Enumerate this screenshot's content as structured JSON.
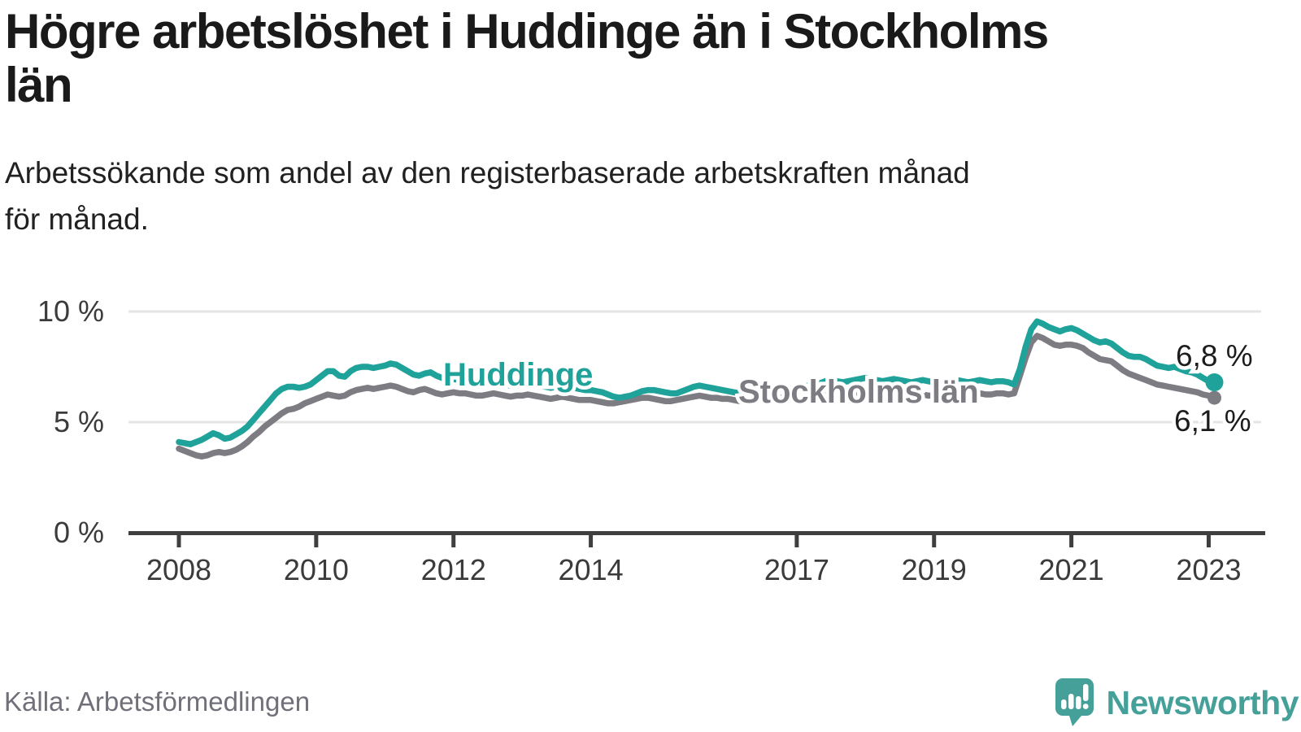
{
  "header": {
    "title_line1": "Högre arbetslöshet i Huddinge än i Stockholms",
    "title_line2": "län",
    "subtitle_line1": "Arbetssökande som andel av den registerbaserade arbetskraften månad",
    "subtitle_line2": "för månad."
  },
  "footer": {
    "source": "Källa: Arbetsförmedlingen",
    "brand_name": "Newsworthy"
  },
  "colors": {
    "huddinge": "#1ea29a",
    "stockholm": "#7c7c82",
    "annotation": "#1c1c1c",
    "axis": "#3f3f3f",
    "tick_text": "#3b3b3b",
    "grid": "#e4e4e4",
    "logo": "#46a09a"
  },
  "chart_data": {
    "type": "line",
    "title": "Högre arbetslöshet i Huddinge än i Stockholms län",
    "subtitle": "Arbetssökande som andel av den registerbaserade arbetskraften månad för månad.",
    "unit": "%",
    "x_monthly_start": "2008-01",
    "x_monthly_end": "2023-02",
    "ylim": [
      0,
      10.3
    ],
    "grid": "horizontal",
    "legend": "inline-labels",
    "x_ticks": [
      {
        "year": 2008,
        "label": "2008"
      },
      {
        "year": 2010,
        "label": "2010"
      },
      {
        "year": 2012,
        "label": "2012"
      },
      {
        "year": 2014,
        "label": "2014"
      },
      {
        "year": 2017,
        "label": "2017"
      },
      {
        "year": 2019,
        "label": "2019"
      },
      {
        "year": 2021,
        "label": "2021"
      },
      {
        "year": 2023,
        "label": "2023"
      }
    ],
    "y_ticks": [
      {
        "value": 0,
        "label": "0 %"
      },
      {
        "value": 5,
        "label": "5 %"
      },
      {
        "value": 10,
        "label": "10 %"
      }
    ],
    "series": [
      {
        "name": "Stockholms län",
        "end_label": "6,1 %",
        "end_value": 6.1,
        "values": [
          3.8,
          3.7,
          3.6,
          3.5,
          3.45,
          3.5,
          3.6,
          3.65,
          3.6,
          3.65,
          3.75,
          3.9,
          4.1,
          4.35,
          4.55,
          4.8,
          5.0,
          5.2,
          5.4,
          5.55,
          5.6,
          5.7,
          5.85,
          5.95,
          6.05,
          6.15,
          6.25,
          6.2,
          6.15,
          6.2,
          6.35,
          6.45,
          6.5,
          6.55,
          6.5,
          6.55,
          6.6,
          6.65,
          6.6,
          6.5,
          6.4,
          6.35,
          6.45,
          6.5,
          6.4,
          6.3,
          6.25,
          6.3,
          6.35,
          6.3,
          6.3,
          6.25,
          6.2,
          6.2,
          6.25,
          6.3,
          6.25,
          6.2,
          6.15,
          6.2,
          6.2,
          6.25,
          6.2,
          6.15,
          6.1,
          6.05,
          6.1,
          6.15,
          6.1,
          6.05,
          6.0,
          6.0,
          6.0,
          5.95,
          5.9,
          5.85,
          5.85,
          5.9,
          5.95,
          6.0,
          6.05,
          6.1,
          6.1,
          6.05,
          6.0,
          5.95,
          5.95,
          6.0,
          6.05,
          6.1,
          6.15,
          6.2,
          6.15,
          6.1,
          6.1,
          6.05,
          6.05,
          6.0,
          5.95,
          6.0,
          6.05,
          6.1,
          6.05,
          6.0,
          6.05,
          6.1,
          6.15,
          6.2,
          6.2,
          6.25,
          6.3,
          6.25,
          6.3,
          6.35,
          6.4,
          6.35,
          6.3,
          6.3,
          6.35,
          6.3,
          6.3,
          6.25,
          6.2,
          6.2,
          6.25,
          6.3,
          6.35,
          6.3,
          6.25,
          6.2,
          6.25,
          6.2,
          6.2,
          6.15,
          6.2,
          6.25,
          6.3,
          6.25,
          6.2,
          6.25,
          6.3,
          6.25,
          6.25,
          6.3,
          6.3,
          6.25,
          6.3,
          7.1,
          7.9,
          8.6,
          8.9,
          8.8,
          8.65,
          8.5,
          8.45,
          8.5,
          8.5,
          8.45,
          8.35,
          8.15,
          8.0,
          7.85,
          7.8,
          7.75,
          7.55,
          7.35,
          7.2,
          7.1,
          7.0,
          6.9,
          6.8,
          6.7,
          6.65,
          6.6,
          6.55,
          6.5,
          6.45,
          6.4,
          6.35,
          6.25,
          6.2,
          6.1
        ]
      },
      {
        "name": "Huddinge",
        "end_label": "6,8 %",
        "end_value": 6.8,
        "values": [
          4.1,
          4.05,
          4.0,
          4.1,
          4.2,
          4.35,
          4.5,
          4.4,
          4.25,
          4.3,
          4.45,
          4.6,
          4.8,
          5.1,
          5.4,
          5.7,
          6.0,
          6.3,
          6.5,
          6.6,
          6.6,
          6.55,
          6.6,
          6.7,
          6.9,
          7.1,
          7.3,
          7.3,
          7.1,
          7.05,
          7.3,
          7.45,
          7.5,
          7.5,
          7.45,
          7.5,
          7.55,
          7.65,
          7.6,
          7.45,
          7.3,
          7.15,
          7.1,
          7.2,
          7.25,
          7.1,
          7.0,
          6.95,
          6.95,
          6.9,
          6.85,
          6.8,
          6.75,
          6.7,
          6.75,
          6.8,
          6.75,
          6.7,
          6.65,
          6.7,
          6.7,
          6.75,
          6.7,
          6.65,
          6.6,
          6.55,
          6.6,
          6.65,
          6.6,
          6.55,
          6.5,
          6.45,
          6.45,
          6.4,
          6.35,
          6.25,
          6.15,
          6.1,
          6.15,
          6.2,
          6.3,
          6.4,
          6.45,
          6.45,
          6.4,
          6.35,
          6.3,
          6.3,
          6.4,
          6.5,
          6.6,
          6.65,
          6.6,
          6.55,
          6.5,
          6.45,
          6.4,
          6.35,
          6.3,
          6.3,
          6.35,
          6.4,
          6.45,
          6.4,
          6.45,
          6.5,
          6.55,
          6.5,
          6.55,
          6.6,
          6.65,
          6.7,
          6.75,
          6.85,
          6.9,
          6.85,
          6.8,
          6.85,
          6.9,
          6.95,
          7.0,
          6.95,
          6.9,
          6.85,
          6.9,
          6.95,
          6.9,
          6.85,
          6.8,
          6.85,
          6.9,
          6.85,
          6.8,
          6.75,
          6.8,
          6.85,
          6.9,
          6.85,
          6.8,
          6.85,
          6.9,
          6.85,
          6.8,
          6.85,
          6.85,
          6.8,
          6.7,
          7.4,
          8.4,
          9.2,
          9.55,
          9.45,
          9.3,
          9.2,
          9.1,
          9.2,
          9.25,
          9.15,
          9.0,
          8.85,
          8.7,
          8.6,
          8.65,
          8.55,
          8.35,
          8.15,
          8.0,
          7.95,
          7.95,
          7.85,
          7.7,
          7.55,
          7.5,
          7.45,
          7.5,
          7.4,
          7.3,
          7.25,
          7.15,
          7.0,
          6.85,
          6.8
        ]
      }
    ]
  }
}
